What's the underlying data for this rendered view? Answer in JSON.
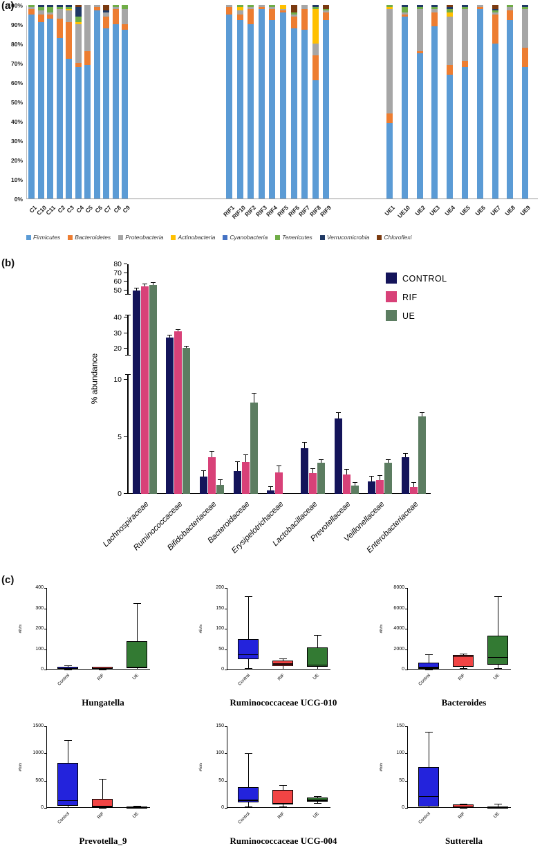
{
  "panels": {
    "a": {
      "label": "(a)"
    },
    "b": {
      "label": "(b)"
    },
    "c": {
      "label": "(c)"
    }
  },
  "chart_data": [
    {
      "type": "bar",
      "variant": "stacked-100-percent",
      "panel": "a",
      "y_axis": {
        "ticks": [
          "100%",
          "90%",
          "80%",
          "70%",
          "60%",
          "50%",
          "40%",
          "30%",
          "20%",
          "10%",
          "0%"
        ],
        "range": [
          0,
          100
        ]
      },
      "legend_position": "bottom",
      "phyla": [
        {
          "name": "Firmicutes",
          "color": "#5B9BD5"
        },
        {
          "name": "Bacteroidetes",
          "color": "#ED7D31"
        },
        {
          "name": "Proteobacteria",
          "color": "#A6A6A6"
        },
        {
          "name": "Actinobacteria",
          "color": "#FFC000"
        },
        {
          "name": "Cyanobacteria",
          "color": "#4472C4"
        },
        {
          "name": "Tenericutes",
          "color": "#70AD47"
        },
        {
          "name": "Verrucomicrobia",
          "color": "#1F3864"
        },
        {
          "name": "Chloroflexi",
          "color": "#7B3A10"
        }
      ],
      "groups": [
        {
          "name": "Control",
          "samples": [
            "C1",
            "C10",
            "C11",
            "C2",
            "C3",
            "C4",
            "C5",
            "C6",
            "C7",
            "C8",
            "C9"
          ],
          "stacks": [
            [
              95,
              3,
              1,
              0,
              0,
              1,
              0,
              0
            ],
            [
              91,
              4,
              2,
              0,
              0,
              2,
              1,
              0
            ],
            [
              93,
              2,
              1,
              0,
              0,
              3,
              1,
              0
            ],
            [
              83,
              10,
              5,
              0,
              0,
              1,
              1,
              0
            ],
            [
              72,
              19,
              6,
              1,
              0,
              1,
              1,
              0
            ],
            [
              68,
              2,
              20,
              1,
              0,
              3,
              5,
              1
            ],
            [
              69,
              7,
              24,
              0,
              0,
              0,
              0,
              0
            ],
            [
              97,
              2,
              1,
              0,
              0,
              0,
              0,
              0
            ],
            [
              88,
              6,
              2,
              0,
              0,
              0,
              1,
              3
            ],
            [
              90,
              8,
              1,
              0,
              0,
              1,
              0,
              0
            ],
            [
              87,
              3,
              8,
              0,
              0,
              2,
              0,
              0
            ]
          ]
        },
        {
          "name": "RIF",
          "samples": [
            "RIF1",
            "RIF10",
            "RIF2",
            "RIF3",
            "RIF4",
            "RIF5",
            "RIF6",
            "RIF7",
            "RIF8",
            "RIF9"
          ],
          "stacks": [
            [
              95,
              4,
              1,
              0,
              0,
              0,
              0,
              0
            ],
            [
              92,
              3,
              2,
              2,
              0,
              1,
              0,
              0
            ],
            [
              90,
              8,
              1,
              0,
              0,
              1,
              0,
              0
            ],
            [
              98,
              1,
              1,
              0,
              0,
              0,
              0,
              0
            ],
            [
              92,
              6,
              1,
              0,
              0,
              1,
              0,
              0
            ],
            [
              96,
              1,
              1,
              2,
              0,
              0,
              0,
              0
            ],
            [
              88,
              6,
              1,
              0,
              0,
              1,
              0,
              4
            ],
            [
              87,
              11,
              2,
              0,
              0,
              0,
              0,
              0
            ],
            [
              61,
              13,
              6,
              18,
              0,
              1,
              1,
              0
            ],
            [
              92,
              4,
              1,
              0,
              0,
              1,
              0,
              2
            ]
          ]
        },
        {
          "name": "UE",
          "samples": [
            "UE1",
            "UE10",
            "UE2",
            "UE3",
            "UE4",
            "UE5",
            "UE6",
            "UE7",
            "UE8",
            "UE9"
          ],
          "stacks": [
            [
              39,
              5,
              54,
              1,
              0,
              1,
              0,
              0
            ],
            [
              94,
              1,
              1,
              0,
              0,
              3,
              1,
              0
            ],
            [
              75,
              1,
              22,
              0,
              0,
              1,
              1,
              0
            ],
            [
              89,
              7,
              2,
              0,
              0,
              1,
              1,
              0
            ],
            [
              64,
              5,
              25,
              2,
              0,
              2,
              1,
              1
            ],
            [
              68,
              3,
              27,
              0,
              0,
              1,
              1,
              0
            ],
            [
              98,
              1,
              1,
              0,
              0,
              0,
              0,
              0
            ],
            [
              80,
              15,
              1,
              0,
              0,
              1,
              1,
              2
            ],
            [
              92,
              5,
              2,
              0,
              0,
              1,
              0,
              0
            ],
            [
              68,
              10,
              20,
              0,
              0,
              1,
              1,
              0
            ]
          ]
        }
      ]
    },
    {
      "type": "bar",
      "variant": "grouped-broken-y-axis",
      "panel": "b",
      "ylabel": "% abundance",
      "axis_segments": [
        {
          "range": [
            0,
            10
          ],
          "ticks": [
            0,
            5,
            10
          ]
        },
        {
          "range": [
            20,
            40
          ],
          "ticks": [
            20,
            30,
            40
          ]
        },
        {
          "range": [
            50,
            80
          ],
          "ticks": [
            50,
            60,
            70,
            80
          ]
        }
      ],
      "categories": [
        "Lachnospiraceae",
        "Ruminococcaceae",
        "Bifidobacteriaceae",
        "Bacteroidaceae",
        "Erysipelotrichaceae",
        "Lactobacillaceae",
        "Prevotellaceae",
        "Veillonellaceae",
        "Enterobacteriaceae"
      ],
      "series": [
        {
          "name": "CONTROL",
          "color": "#14145A",
          "values": [
            50,
            27,
            1.5,
            2,
            0.3,
            4,
            6.6,
            1.1,
            3.2
          ],
          "errors": [
            2.5,
            1.5,
            0.5,
            0.8,
            0.3,
            0.5,
            0.5,
            0.4,
            0.3
          ]
        },
        {
          "name": "RIF",
          "color": "#D84178",
          "values": [
            55,
            31,
            3.2,
            2.8,
            1.9,
            1.8,
            1.7,
            1.2,
            0.6
          ],
          "errors": [
            2.5,
            1.0,
            0.5,
            0.6,
            0.5,
            0.4,
            0.4,
            0.4,
            0.4
          ]
        },
        {
          "name": "UE",
          "color": "#5C7D61",
          "values": [
            56,
            20.5,
            0.8,
            8,
            0,
            2.7,
            0.7,
            2.7,
            6.8
          ],
          "errors": [
            3.0,
            1.0,
            0.4,
            0.8,
            0,
            0.3,
            0.3,
            0.3,
            0.3
          ]
        }
      ]
    },
    {
      "type": "box",
      "panel": "c",
      "ylabel": "#hits",
      "x_labels": [
        "Control",
        "RIF",
        "UE"
      ],
      "colors": [
        "#2323DC",
        "#F14444",
        "#337A33"
      ],
      "plots": [
        {
          "title": "Hungatella",
          "yticks": [
            0,
            100,
            200,
            300,
            400
          ],
          "boxes": [
            {
              "group": "Control",
              "lo": 0,
              "q1": 3,
              "median": 8,
              "q3": 15,
              "hi": 22
            },
            {
              "group": "RIF",
              "lo": 1,
              "q1": 3,
              "median": 7,
              "q3": 12,
              "hi": 14
            },
            {
              "group": "UE",
              "lo": 2,
              "q1": 6,
              "median": 12,
              "q3": 140,
              "hi": 325
            }
          ]
        },
        {
          "title": "Ruminococcaceae UCG-010",
          "yticks": [
            0,
            50,
            100,
            150,
            200
          ],
          "boxes": [
            {
              "group": "Control",
              "lo": 3,
              "q1": 25,
              "median": 38,
              "q3": 75,
              "hi": 180
            },
            {
              "group": "RIF",
              "lo": 2,
              "q1": 8,
              "median": 15,
              "q3": 22,
              "hi": 27
            },
            {
              "group": "UE",
              "lo": 2,
              "q1": 7,
              "median": 12,
              "q3": 55,
              "hi": 85
            }
          ]
        },
        {
          "title": "Bacteroides",
          "yticks": [
            0,
            2000,
            4000,
            6000,
            8000
          ],
          "boxes": [
            {
              "group": "Control",
              "lo": 30,
              "q1": 100,
              "median": 260,
              "q3": 650,
              "hi": 1500
            },
            {
              "group": "RIF",
              "lo": 150,
              "q1": 300,
              "median": 1300,
              "q3": 1450,
              "hi": 1550
            },
            {
              "group": "UE",
              "lo": 120,
              "q1": 450,
              "median": 1250,
              "q3": 3300,
              "hi": 7200
            }
          ]
        },
        {
          "title": "Prevotella_9",
          "yticks": [
            0,
            500,
            1000,
            1500
          ],
          "boxes": [
            {
              "group": "Control",
              "lo": 10,
              "q1": 40,
              "median": 140,
              "q3": 820,
              "hi": 1250
            },
            {
              "group": "RIF",
              "lo": 5,
              "q1": 15,
              "median": 35,
              "q3": 160,
              "hi": 540
            },
            {
              "group": "UE",
              "lo": 0,
              "q1": 3,
              "median": 10,
              "q3": 22,
              "hi": 35
            }
          ]
        },
        {
          "title": "Ruminococcaceae UCG-004",
          "yticks": [
            0,
            50,
            100,
            150
          ],
          "boxes": [
            {
              "group": "Control",
              "lo": 3,
              "q1": 10,
              "median": 15,
              "q3": 38,
              "hi": 100
            },
            {
              "group": "RIF",
              "lo": 2,
              "q1": 6,
              "median": 9,
              "q3": 33,
              "hi": 42
            },
            {
              "group": "UE",
              "lo": 9,
              "q1": 12,
              "median": 15,
              "q3": 19,
              "hi": 21
            }
          ]
        },
        {
          "title": "Sutterella",
          "yticks": [
            0,
            50,
            100,
            150
          ],
          "boxes": [
            {
              "group": "Control",
              "lo": 1,
              "q1": 3,
              "median": 22,
              "q3": 75,
              "hi": 140
            },
            {
              "group": "RIF",
              "lo": 0,
              "q1": 1,
              "median": 3,
              "q3": 6,
              "hi": 8
            },
            {
              "group": "UE",
              "lo": 0,
              "q1": 0,
              "median": 1,
              "q3": 2,
              "hi": 7
            }
          ]
        }
      ]
    }
  ]
}
